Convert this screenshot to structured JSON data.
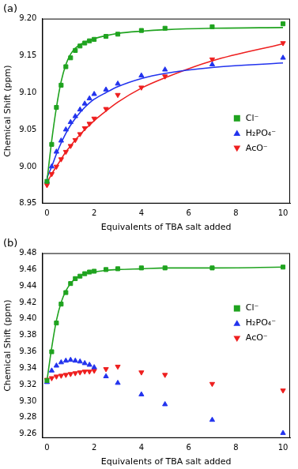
{
  "chart_data": [
    {
      "type": "scatter",
      "title": "(a)",
      "x_label": "Equivalents of TBA salt added",
      "y_label": "Chemical Shift (ppm)",
      "x": [
        0,
        0.2,
        0.4,
        0.6,
        0.8,
        1.0,
        1.2,
        1.4,
        1.6,
        1.8,
        2.0,
        2.5,
        3,
        4,
        5,
        7,
        10
      ],
      "xlim": [
        -0.2,
        10.3
      ],
      "xticks": [
        0,
        2,
        4,
        6,
        8,
        10
      ],
      "ylim": [
        8.95,
        9.2
      ],
      "yticks": [
        8.95,
        {
          "value": 9.0,
          "label": "9.00"
        },
        9.05,
        {
          "value": 9.1,
          "label": "9.10"
        },
        9.15,
        {
          "value": 9.2,
          "label": "9.20"
        }
      ],
      "grid": false,
      "legend": "right",
      "series": [
        {
          "name": "Cl⁻",
          "color": "#1fa31f",
          "marker": "square",
          "values": [
            8.98,
            9.03,
            9.08,
            9.11,
            9.135,
            9.147,
            9.157,
            9.163,
            9.167,
            9.17,
            9.172,
            9.176,
            9.179,
            9.184,
            9.187,
            9.189,
            9.193
          ],
          "fit": [
            8.98,
            9.035,
            9.08,
            9.115,
            9.138,
            9.152,
            9.16,
            9.165,
            9.168,
            9.171,
            9.173,
            9.177,
            9.18,
            9.183,
            9.185,
            9.187,
            9.188
          ]
        },
        {
          "name": "H₂PO₄⁻",
          "color": "#2233ee",
          "marker": "triangle",
          "values": [
            8.98,
            9.0,
            9.02,
            9.035,
            9.05,
            9.06,
            9.068,
            9.077,
            9.085,
            9.092,
            9.098,
            9.104,
            9.112,
            9.123,
            9.131,
            9.138,
            9.147
          ],
          "fit": [
            8.985,
            9.0,
            9.017,
            9.032,
            9.045,
            9.056,
            9.065,
            9.073,
            9.08,
            9.086,
            9.091,
            9.1,
            9.108,
            9.119,
            9.126,
            9.134,
            9.14
          ]
        },
        {
          "name": "AcO⁻",
          "color": "#ee1f1f",
          "marker": "triangle_down",
          "values": [
            8.975,
            8.99,
            9.0,
            9.01,
            9.02,
            9.028,
            9.036,
            9.044,
            9.052,
            9.058,
            9.065,
            9.078,
            9.097,
            9.107,
            9.122,
            9.145,
            9.167
          ],
          "fit": [
            8.978,
            8.99,
            9.0,
            9.01,
            9.02,
            9.028,
            9.036,
            9.043,
            9.05,
            9.056,
            9.062,
            9.075,
            9.087,
            9.106,
            9.12,
            9.143,
            9.166
          ]
        }
      ]
    },
    {
      "type": "scatter",
      "title": "(b)",
      "x_label": "Equivalents of TBA salt added",
      "y_label": "Chemical Shift (ppm)",
      "x": [
        0,
        0.2,
        0.4,
        0.6,
        0.8,
        1.0,
        1.2,
        1.4,
        1.6,
        1.8,
        2.0,
        2.5,
        3,
        4,
        5,
        7,
        10
      ],
      "xlim": [
        -0.2,
        10.3
      ],
      "xticks": [
        0,
        2,
        4,
        6,
        8,
        10
      ],
      "ylim": [
        9.255,
        9.48
      ],
      "yticks": [
        9.26,
        9.28,
        {
          "value": 9.3,
          "label": "9.30"
        },
        9.32,
        9.34,
        9.36,
        9.38,
        {
          "value": 9.4,
          "label": "9.40"
        },
        9.42,
        9.44,
        9.46,
        9.48
      ],
      "grid": false,
      "legend": "right",
      "series": [
        {
          "name": "Cl⁻",
          "color": "#1fa31f",
          "marker": "square",
          "values": [
            9.325,
            9.36,
            9.395,
            9.418,
            9.432,
            9.443,
            9.449,
            9.452,
            9.455,
            9.457,
            9.458,
            9.46,
            9.461,
            9.462,
            9.462,
            9.462,
            9.463
          ],
          "fit": [
            9.325,
            9.365,
            9.398,
            9.42,
            9.434,
            9.443,
            9.449,
            9.452,
            9.455,
            9.456,
            9.457,
            9.459,
            9.46,
            9.461,
            9.462,
            9.462,
            9.463
          ]
        },
        {
          "name": "H₂PO₄⁻",
          "color": "#2233ee",
          "marker": "triangle",
          "values": [
            9.323,
            9.337,
            9.343,
            9.347,
            9.349,
            9.35,
            9.349,
            9.348,
            9.346,
            9.344,
            9.341,
            9.33,
            9.322,
            9.308,
            9.296,
            9.277,
            9.261
          ]
        },
        {
          "name": "AcO⁻",
          "color": "#ee1f1f",
          "marker": "triangle_down",
          "values": [
            9.326,
            9.328,
            9.33,
            9.331,
            9.332,
            9.333,
            9.334,
            9.335,
            9.336,
            9.336,
            9.337,
            9.339,
            9.342,
            9.335,
            9.332,
            9.321,
            9.313
          ]
        }
      ]
    }
  ]
}
